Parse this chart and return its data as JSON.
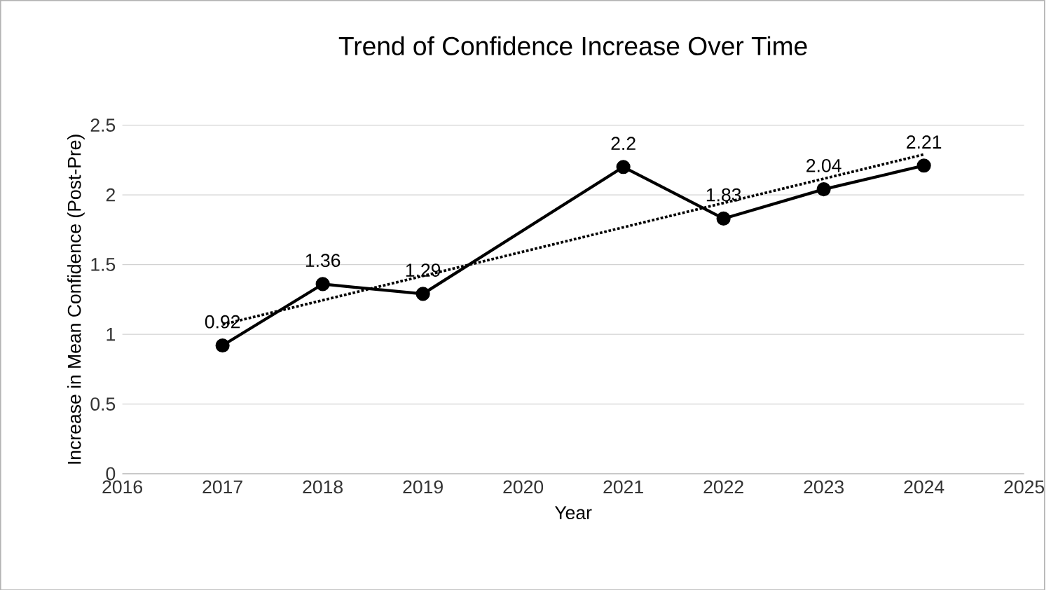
{
  "chart_data": {
    "type": "line",
    "title": "Trend of Confidence Increase Over Time",
    "xlabel": "Year",
    "ylabel": "Increase in Mean Confidence (Post-Pre)",
    "x": [
      2017,
      2018,
      2019,
      2021,
      2022,
      2023,
      2024
    ],
    "series": [
      {
        "color": "#000000",
        "values": [
          0.92,
          1.36,
          1.29,
          2.2,
          1.83,
          2.04,
          2.21
        ],
        "value_labels": [
          "0.92",
          "1.36",
          "1.29",
          "2.2",
          "1.83",
          "2.04",
          "2.21"
        ],
        "marker": "circle",
        "line_style": "solid"
      },
      {
        "type": "line",
        "x": [
          2017,
          2024
        ],
        "values": [
          1.07,
          2.29
        ],
        "color": "#000000",
        "marker": "none",
        "line_style": "dotted"
      }
    ],
    "xlim": [
      2016,
      2025
    ],
    "xticks": [
      2016,
      2017,
      2018,
      2019,
      2020,
      2021,
      2022,
      2023,
      2024,
      2025
    ],
    "ylim": [
      0,
      2.5
    ],
    "yticks": [
      0,
      0.5,
      1,
      1.5,
      2,
      2.5
    ],
    "grid": "y"
  }
}
